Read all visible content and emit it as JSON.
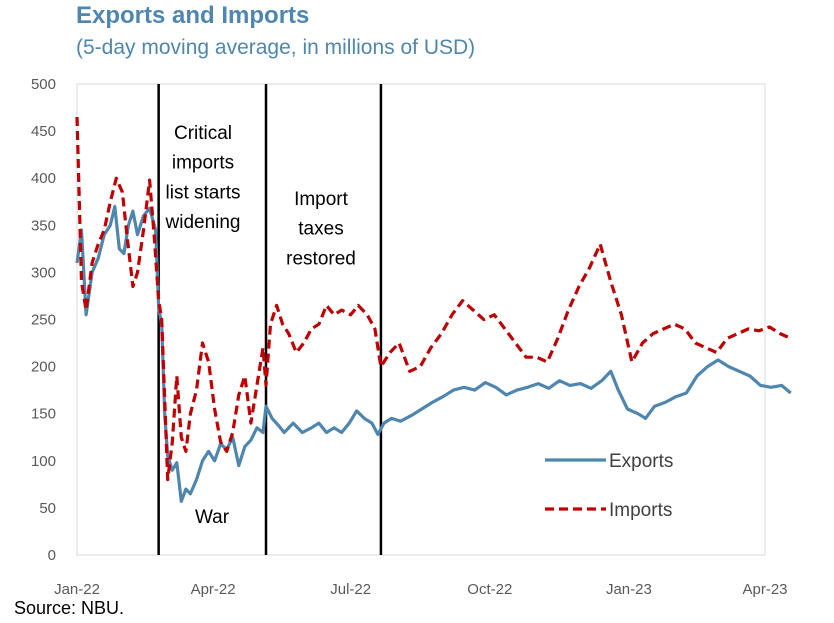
{
  "title": "Exports and Imports",
  "subtitle": "(5-day moving average,  in millions of USD)",
  "source": "Source: NBU.",
  "chart_data": {
    "type": "line",
    "x_domain": [
      "2022-01-01",
      "2023-04-01"
    ],
    "ylim": [
      0,
      500
    ],
    "y_ticks": [
      0,
      50,
      100,
      150,
      200,
      250,
      300,
      350,
      400,
      450,
      500
    ],
    "x_ticks": [
      {
        "date": "2022-01-01",
        "label": "Jan-22"
      },
      {
        "date": "2022-04-01",
        "label": "Apr-22"
      },
      {
        "date": "2022-07-01",
        "label": "Jul-22"
      },
      {
        "date": "2022-10-01",
        "label": "Oct-22"
      },
      {
        "date": "2023-01-01",
        "label": "Jan-23"
      },
      {
        "date": "2023-04-01",
        "label": "Apr-23"
      }
    ],
    "event_lines": [
      "2022-02-24",
      "2022-05-06",
      "2022-07-21"
    ],
    "annotations": [
      {
        "id": "critical",
        "lines": [
          "Critical",
          "imports",
          "list starts",
          "widening"
        ]
      },
      {
        "id": "taxes",
        "lines": [
          "Import",
          "taxes",
          "restored"
        ]
      },
      {
        "id": "war",
        "lines": [
          "War"
        ]
      }
    ],
    "legend": {
      "placement": "bottom-right"
    },
    "series": [
      {
        "name": "Exports",
        "color": "#4f86b0",
        "style": "solid",
        "points": [
          [
            "2022-01-01",
            310
          ],
          [
            "2022-01-04",
            345
          ],
          [
            "2022-01-07",
            255
          ],
          [
            "2022-01-11",
            300
          ],
          [
            "2022-01-15",
            315
          ],
          [
            "2022-01-19",
            340
          ],
          [
            "2022-01-23",
            350
          ],
          [
            "2022-01-26",
            370
          ],
          [
            "2022-01-29",
            325
          ],
          [
            "2022-02-01",
            320
          ],
          [
            "2022-02-04",
            350
          ],
          [
            "2022-02-07",
            365
          ],
          [
            "2022-02-10",
            340
          ],
          [
            "2022-02-14",
            360
          ],
          [
            "2022-02-18",
            368
          ],
          [
            "2022-02-22",
            345
          ],
          [
            "2022-02-24",
            262
          ],
          [
            "2022-02-26",
            245
          ],
          [
            "2022-02-28",
            150
          ],
          [
            "2022-03-02",
            105
          ],
          [
            "2022-03-05",
            90
          ],
          [
            "2022-03-08",
            98
          ],
          [
            "2022-03-11",
            57
          ],
          [
            "2022-03-14",
            70
          ],
          [
            "2022-03-17",
            65
          ],
          [
            "2022-03-21",
            80
          ],
          [
            "2022-03-25",
            100
          ],
          [
            "2022-03-29",
            110
          ],
          [
            "2022-04-02",
            100
          ],
          [
            "2022-04-06",
            118
          ],
          [
            "2022-04-10",
            112
          ],
          [
            "2022-04-14",
            125
          ],
          [
            "2022-04-18",
            95
          ],
          [
            "2022-04-22",
            115
          ],
          [
            "2022-04-26",
            122
          ],
          [
            "2022-04-30",
            135
          ],
          [
            "2022-05-04",
            130
          ],
          [
            "2022-05-06",
            158
          ],
          [
            "2022-05-10",
            145
          ],
          [
            "2022-05-14",
            138
          ],
          [
            "2022-05-18",
            130
          ],
          [
            "2022-05-24",
            140
          ],
          [
            "2022-05-30",
            130
          ],
          [
            "2022-06-05",
            135
          ],
          [
            "2022-06-10",
            140
          ],
          [
            "2022-06-15",
            130
          ],
          [
            "2022-06-20",
            135
          ],
          [
            "2022-06-25",
            130
          ],
          [
            "2022-06-30",
            140
          ],
          [
            "2022-07-05",
            153
          ],
          [
            "2022-07-10",
            145
          ],
          [
            "2022-07-15",
            140
          ],
          [
            "2022-07-19",
            128
          ],
          [
            "2022-07-23",
            140
          ],
          [
            "2022-07-28",
            145
          ],
          [
            "2022-08-03",
            142
          ],
          [
            "2022-08-10",
            148
          ],
          [
            "2022-08-17",
            155
          ],
          [
            "2022-08-24",
            162
          ],
          [
            "2022-08-31",
            168
          ],
          [
            "2022-09-07",
            175
          ],
          [
            "2022-09-14",
            178
          ],
          [
            "2022-09-21",
            175
          ],
          [
            "2022-09-28",
            183
          ],
          [
            "2022-10-05",
            178
          ],
          [
            "2022-10-12",
            170
          ],
          [
            "2022-10-19",
            175
          ],
          [
            "2022-10-26",
            178
          ],
          [
            "2022-11-02",
            182
          ],
          [
            "2022-11-09",
            177
          ],
          [
            "2022-11-16",
            185
          ],
          [
            "2022-11-23",
            180
          ],
          [
            "2022-11-30",
            182
          ],
          [
            "2022-12-07",
            177
          ],
          [
            "2022-12-14",
            185
          ],
          [
            "2022-12-20",
            195
          ],
          [
            "2022-12-25",
            175
          ],
          [
            "2022-12-31",
            155
          ],
          [
            "2023-01-07",
            150
          ],
          [
            "2023-01-12",
            145
          ],
          [
            "2023-01-18",
            158
          ],
          [
            "2023-01-25",
            162
          ],
          [
            "2023-02-01",
            168
          ],
          [
            "2023-02-08",
            172
          ],
          [
            "2023-02-15",
            190
          ],
          [
            "2023-02-22",
            200
          ],
          [
            "2023-03-01",
            207
          ],
          [
            "2023-03-08",
            200
          ],
          [
            "2023-03-15",
            195
          ],
          [
            "2023-03-22",
            190
          ],
          [
            "2023-03-29",
            180
          ],
          [
            "2023-04-05",
            178
          ],
          [
            "2023-04-12",
            180
          ],
          [
            "2023-04-18",
            172
          ]
        ]
      },
      {
        "name": "Imports",
        "color": "#c00000",
        "style": "dashed",
        "points": [
          [
            "2022-01-01",
            465
          ],
          [
            "2022-01-04",
            290
          ],
          [
            "2022-01-07",
            260
          ],
          [
            "2022-01-11",
            310
          ],
          [
            "2022-01-15",
            330
          ],
          [
            "2022-01-19",
            345
          ],
          [
            "2022-01-23",
            375
          ],
          [
            "2022-01-27",
            400
          ],
          [
            "2022-01-31",
            385
          ],
          [
            "2022-02-03",
            340
          ],
          [
            "2022-02-07",
            285
          ],
          [
            "2022-02-10",
            300
          ],
          [
            "2022-02-14",
            345
          ],
          [
            "2022-02-18",
            398
          ],
          [
            "2022-02-21",
            340
          ],
          [
            "2022-02-24",
            270
          ],
          [
            "2022-02-26",
            250
          ],
          [
            "2022-02-28",
            165
          ],
          [
            "2022-03-02",
            80
          ],
          [
            "2022-03-05",
            120
          ],
          [
            "2022-03-08",
            190
          ],
          [
            "2022-03-11",
            125
          ],
          [
            "2022-03-14",
            110
          ],
          [
            "2022-03-17",
            150
          ],
          [
            "2022-03-21",
            175
          ],
          [
            "2022-03-25",
            225
          ],
          [
            "2022-03-29",
            205
          ],
          [
            "2022-04-02",
            155
          ],
          [
            "2022-04-06",
            120
          ],
          [
            "2022-04-10",
            110
          ],
          [
            "2022-04-14",
            130
          ],
          [
            "2022-04-18",
            170
          ],
          [
            "2022-04-22",
            190
          ],
          [
            "2022-04-26",
            140
          ],
          [
            "2022-04-30",
            180
          ],
          [
            "2022-05-04",
            220
          ],
          [
            "2022-05-06",
            180
          ],
          [
            "2022-05-09",
            245
          ],
          [
            "2022-05-13",
            265
          ],
          [
            "2022-05-17",
            245
          ],
          [
            "2022-05-21",
            235
          ],
          [
            "2022-05-26",
            215
          ],
          [
            "2022-05-31",
            225
          ],
          [
            "2022-06-05",
            240
          ],
          [
            "2022-06-10",
            245
          ],
          [
            "2022-06-15",
            265
          ],
          [
            "2022-06-20",
            255
          ],
          [
            "2022-06-25",
            260
          ],
          [
            "2022-07-01",
            255
          ],
          [
            "2022-07-06",
            265
          ],
          [
            "2022-07-12",
            255
          ],
          [
            "2022-07-17",
            240
          ],
          [
            "2022-07-21",
            200
          ],
          [
            "2022-07-27",
            215
          ],
          [
            "2022-08-02",
            225
          ],
          [
            "2022-08-09",
            195
          ],
          [
            "2022-08-16",
            200
          ],
          [
            "2022-08-23",
            220
          ],
          [
            "2022-08-30",
            235
          ],
          [
            "2022-09-06",
            255
          ],
          [
            "2022-09-13",
            270
          ],
          [
            "2022-09-20",
            260
          ],
          [
            "2022-09-27",
            250
          ],
          [
            "2022-10-04",
            255
          ],
          [
            "2022-10-11",
            240
          ],
          [
            "2022-10-18",
            225
          ],
          [
            "2022-10-25",
            210
          ],
          [
            "2022-11-01",
            210
          ],
          [
            "2022-11-08",
            205
          ],
          [
            "2022-11-15",
            230
          ],
          [
            "2022-11-22",
            260
          ],
          [
            "2022-11-29",
            285
          ],
          [
            "2022-12-06",
            305
          ],
          [
            "2022-12-13",
            330
          ],
          [
            "2022-12-20",
            290
          ],
          [
            "2022-12-27",
            255
          ],
          [
            "2023-01-03",
            205
          ],
          [
            "2023-01-10",
            225
          ],
          [
            "2023-01-17",
            235
          ],
          [
            "2023-01-24",
            240
          ],
          [
            "2023-01-31",
            245
          ],
          [
            "2023-02-07",
            240
          ],
          [
            "2023-02-14",
            225
          ],
          [
            "2023-02-21",
            220
          ],
          [
            "2023-02-28",
            215
          ],
          [
            "2023-03-07",
            230
          ],
          [
            "2023-03-14",
            235
          ],
          [
            "2023-03-21",
            240
          ],
          [
            "2023-03-28",
            238
          ],
          [
            "2023-04-04",
            242
          ],
          [
            "2023-04-11",
            235
          ],
          [
            "2023-04-18",
            230
          ]
        ]
      }
    ]
  }
}
